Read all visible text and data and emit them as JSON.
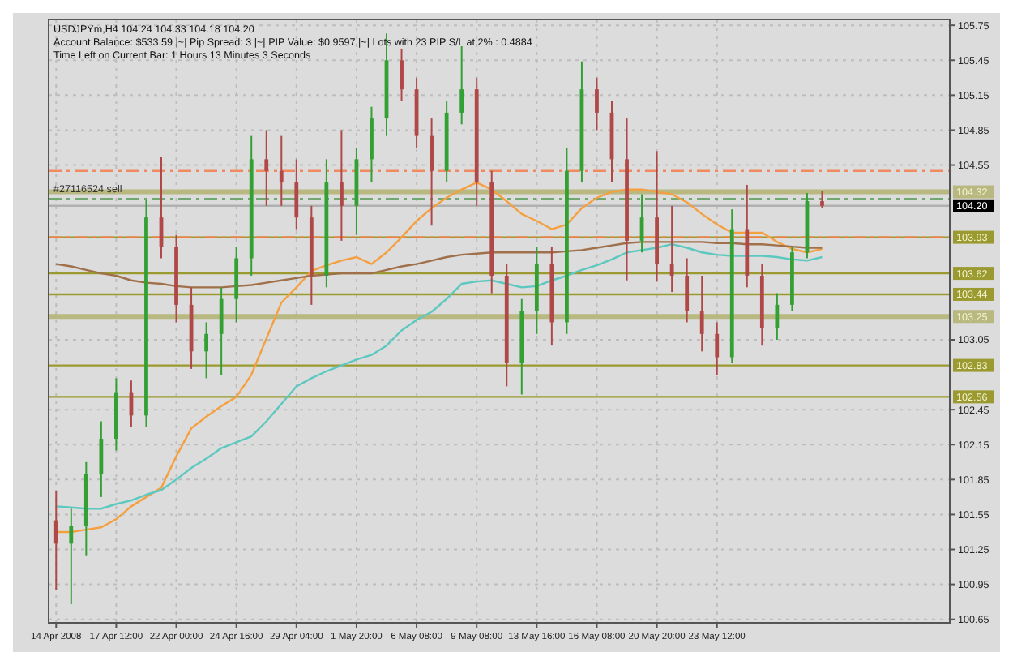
{
  "chart_data": {
    "type": "candlestick",
    "title": "USDJPYm,H4 104.24 104.33 104.18 104.20",
    "subtitle": "Account Balance: $533.59 |~| Pip Spread: 3 |~| PIP Value: $0.9597 |~| Lots with 23 PIP S/L at 2% : 0.4884",
    "annotations": [
      "Time Left on Current Bar: 1 Hours 13 Minutes 3 Seconds"
    ],
    "categories": [
      "14 Apr 2008",
      null,
      null,
      null,
      "17 Apr 12:00",
      null,
      null,
      null,
      "22 Apr 00:00",
      null,
      null,
      null,
      "24 Apr 16:00",
      null,
      null,
      null,
      "29 Apr 04:00",
      null,
      null,
      null,
      "1 May 20:00",
      null,
      null,
      null,
      "6 May 08:00",
      null,
      null,
      null,
      "9 May 08:00",
      null,
      null,
      null,
      "13 May 16:00",
      null,
      null,
      null,
      "16 May 08:00",
      null,
      null,
      null,
      "20 May 20:00",
      null,
      null,
      null,
      "23 May 12:00",
      null,
      null,
      null,
      null,
      null,
      null,
      null,
      null,
      null,
      null,
      null,
      null,
      null,
      null,
      null
    ],
    "series": [
      {
        "type": "candlestick",
        "ohlc": [
          [
            101.5,
            101.75,
            100.9,
            101.3
          ],
          [
            101.3,
            101.6,
            100.78,
            101.45
          ],
          [
            101.45,
            102.0,
            101.2,
            101.9
          ],
          [
            101.9,
            102.35,
            101.7,
            102.2
          ],
          [
            102.2,
            102.72,
            102.1,
            102.6
          ],
          [
            102.6,
            102.7,
            102.3,
            102.4
          ],
          [
            102.4,
            104.25,
            102.3,
            104.1
          ],
          [
            104.1,
            104.62,
            103.75,
            103.85
          ],
          [
            103.85,
            103.95,
            103.2,
            103.35
          ],
          [
            103.35,
            103.5,
            102.8,
            102.95
          ],
          [
            102.95,
            103.2,
            102.72,
            103.1
          ],
          [
            103.1,
            103.5,
            102.75,
            103.4
          ],
          [
            103.4,
            103.85,
            103.2,
            103.75
          ],
          [
            103.75,
            104.8,
            103.6,
            104.6
          ],
          [
            104.6,
            104.85,
            104.2,
            104.5
          ],
          [
            104.5,
            104.8,
            104.2,
            104.4
          ],
          [
            104.4,
            104.6,
            104.0,
            104.1
          ],
          [
            104.1,
            104.2,
            103.35,
            103.6
          ],
          [
            103.6,
            104.6,
            103.5,
            104.4
          ],
          [
            104.4,
            104.85,
            103.9,
            104.2
          ],
          [
            104.2,
            104.7,
            103.95,
            104.6
          ],
          [
            104.6,
            105.05,
            104.4,
            104.95
          ],
          [
            104.95,
            105.68,
            104.8,
            105.45
          ],
          [
            105.45,
            105.55,
            105.1,
            105.2
          ],
          [
            105.2,
            105.3,
            104.7,
            104.8
          ],
          [
            104.8,
            104.95,
            104.03,
            104.5
          ],
          [
            104.5,
            105.1,
            104.4,
            105.0
          ],
          [
            105.0,
            105.57,
            104.9,
            105.2
          ],
          [
            105.2,
            105.3,
            104.2,
            104.4
          ],
          [
            104.4,
            104.5,
            103.45,
            103.6
          ],
          [
            103.6,
            103.7,
            102.65,
            102.85
          ],
          [
            102.85,
            103.4,
            102.58,
            103.3
          ],
          [
            103.3,
            103.85,
            103.1,
            103.7
          ],
          [
            103.7,
            103.85,
            103.0,
            103.2
          ],
          [
            103.2,
            104.7,
            103.1,
            104.5
          ],
          [
            104.5,
            105.44,
            104.4,
            105.2
          ],
          [
            105.2,
            105.3,
            104.85,
            105.0
          ],
          [
            105.0,
            105.1,
            104.4,
            104.6
          ],
          [
            104.6,
            104.95,
            103.56,
            103.9
          ],
          [
            103.9,
            104.3,
            103.8,
            104.1
          ],
          [
            104.1,
            104.67,
            103.55,
            103.7
          ],
          [
            103.7,
            104.2,
            103.46,
            103.6
          ],
          [
            103.6,
            103.75,
            103.2,
            103.3
          ],
          [
            103.3,
            103.6,
            102.95,
            103.1
          ],
          [
            103.1,
            103.2,
            102.75,
            102.9
          ],
          [
            102.9,
            104.17,
            102.85,
            104.0
          ],
          [
            104.0,
            104.38,
            103.5,
            103.6
          ],
          [
            103.6,
            103.7,
            103.0,
            103.15
          ],
          [
            103.15,
            103.45,
            103.05,
            103.35
          ],
          [
            103.35,
            103.85,
            103.3,
            103.8
          ],
          [
            103.8,
            104.31,
            103.75,
            104.24
          ],
          [
            104.24,
            104.33,
            104.18,
            104.2
          ],
          null,
          null,
          null,
          null,
          null,
          null,
          null,
          null
        ],
        "colors": [
          "#b04848",
          "#33a033",
          "#33a033",
          "#33a033",
          "#33a033",
          "#b04848",
          "#33a033",
          "#b04848",
          "#b04848",
          "#b04848",
          "#33a033",
          "#33a033",
          "#33a033",
          "#33a033",
          "#b04848",
          "#b04848",
          "#b04848",
          "#b04848",
          "#33a033",
          "#b04848",
          "#33a033",
          "#33a033",
          "#33a033",
          "#b04848",
          "#b04848",
          "#b04848",
          "#33a033",
          "#33a033",
          "#b04848",
          "#b04848",
          "#b04848",
          "#33a033",
          "#33a033",
          "#b04848",
          "#33a033",
          "#33a033",
          "#b04848",
          "#b04848",
          "#b04848",
          "#33a033",
          "#b04848",
          "#b04848",
          "#b04848",
          "#b04848",
          "#b04848",
          "#33a033",
          "#b04848",
          "#b04848",
          "#33a033",
          "#33a033",
          "#33a033",
          "#b04848",
          null,
          null,
          null,
          null,
          null,
          null,
          null,
          null
        ]
      },
      {
        "type": "line",
        "color": "#f5a040",
        "values": [
          101.4,
          101.4,
          101.42,
          101.44,
          101.51,
          101.62,
          101.7,
          101.78,
          102.05,
          102.29,
          102.39,
          102.48,
          102.56,
          102.75,
          103.06,
          103.37,
          103.5,
          103.64,
          103.69,
          103.73,
          103.76,
          103.7,
          103.8,
          103.93,
          104.07,
          104.18,
          104.27,
          104.34,
          104.4,
          104.34,
          104.24,
          104.13,
          104.07,
          104.0,
          104.04,
          104.18,
          104.27,
          104.32,
          104.34,
          104.34,
          104.32,
          104.3,
          104.23,
          104.13,
          104.04,
          103.97,
          103.97,
          103.97,
          103.89,
          103.83,
          103.8,
          103.83,
          null,
          null,
          null,
          null,
          null,
          null,
          null,
          null
        ]
      },
      {
        "type": "line",
        "color": "#a0704a",
        "values": [
          103.7,
          103.68,
          103.65,
          103.62,
          103.6,
          103.56,
          103.54,
          103.53,
          103.51,
          103.5,
          103.5,
          103.5,
          103.51,
          103.52,
          103.54,
          103.56,
          103.58,
          103.6,
          103.61,
          103.62,
          103.62,
          103.62,
          103.65,
          103.68,
          103.7,
          103.73,
          103.76,
          103.78,
          103.79,
          103.8,
          103.8,
          103.8,
          103.8,
          103.8,
          103.81,
          103.82,
          103.84,
          103.86,
          103.88,
          103.89,
          103.89,
          103.89,
          103.89,
          103.89,
          103.88,
          103.88,
          103.87,
          103.87,
          103.86,
          103.85,
          103.84,
          103.84,
          null,
          null,
          null,
          null,
          null,
          null,
          null,
          null
        ]
      },
      {
        "type": "line",
        "color": "#5cc8c0",
        "values": [
          101.62,
          101.61,
          101.6,
          101.6,
          101.64,
          101.67,
          101.72,
          101.76,
          101.85,
          101.95,
          102.03,
          102.12,
          102.17,
          102.22,
          102.35,
          102.5,
          102.65,
          102.72,
          102.78,
          102.83,
          102.88,
          102.92,
          103.0,
          103.13,
          103.22,
          103.29,
          103.4,
          103.53,
          103.55,
          103.56,
          103.53,
          103.5,
          103.51,
          103.56,
          103.6,
          103.65,
          103.69,
          103.74,
          103.8,
          103.82,
          103.84,
          103.87,
          103.84,
          103.8,
          103.78,
          103.77,
          103.77,
          103.77,
          103.76,
          103.74,
          103.73,
          103.76,
          null,
          null,
          null,
          null,
          null,
          null,
          null,
          null
        ]
      }
    ],
    "ylim": [
      100.62,
      105.8
    ],
    "yticks": [
      100.65,
      100.95,
      101.25,
      101.55,
      101.85,
      102.15,
      102.45,
      103.05,
      104.55,
      104.85,
      105.15,
      105.45,
      105.75
    ],
    "grid": true,
    "ref_lines": [
      {
        "axis": "y",
        "value": 104.5,
        "label": null,
        "color": "#f08a60",
        "line_style": "dashed"
      },
      {
        "axis": "y",
        "value": 104.32,
        "label": "104.32",
        "color": "#b8b880"
      },
      {
        "axis": "y",
        "value": 104.26,
        "label": "#27116524 sell",
        "color": "#70a870",
        "line_style": "dashed"
      },
      {
        "axis": "y",
        "value": 104.2,
        "label": "104.20",
        "color": "#b0b0b0"
      },
      {
        "axis": "y",
        "value": 103.93,
        "label": "103.93",
        "color": "#9a9a30"
      },
      {
        "axis": "y",
        "value": 103.93,
        "label": null,
        "color": "#f08040",
        "line_style": "dashed"
      },
      {
        "axis": "y",
        "value": 103.62,
        "label": "103.62",
        "color": "#9a9a30"
      },
      {
        "axis": "y",
        "value": 103.44,
        "label": "103.44",
        "color": "#9a9a30"
      },
      {
        "axis": "y",
        "value": 103.25,
        "label": "103.25",
        "color": "#b8b880"
      },
      {
        "axis": "y",
        "value": 102.83,
        "label": "102.83",
        "color": "#9a9a30"
      },
      {
        "axis": "y",
        "value": 102.56,
        "label": "102.56",
        "color": "#9a9a30"
      }
    ]
  }
}
